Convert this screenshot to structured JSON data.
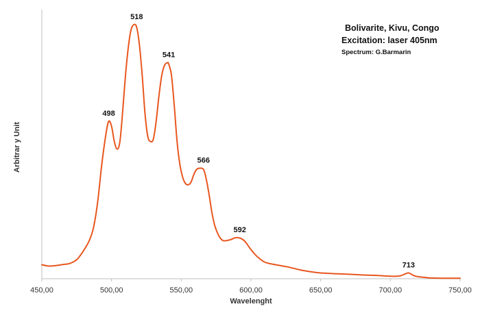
{
  "chart_data": {
    "type": "line",
    "title": "Bolivarite, Kivu, Congo",
    "subtitle": "Excitation: laser 405nm",
    "credit": "Spectrum: G.Barmarin",
    "xlabel": "Wavelenght",
    "ylabel": "Arbitrar y Unit",
    "xlim": [
      450,
      750
    ],
    "ylim": [
      0,
      100
    ],
    "x_ticks": [
      450,
      500,
      550,
      600,
      650,
      700,
      750
    ],
    "x_tick_labels": [
      "450,00",
      "500,00",
      "550,00",
      "600,00",
      "650,00",
      "700,00",
      "750,00"
    ],
    "grid": false,
    "legend": "none",
    "line_color": "#e8561e",
    "series": [
      {
        "x": [
          450,
          455,
          460,
          465,
          470,
          475,
          478,
          481,
          484,
          487,
          490,
          493,
          496,
          498,
          500,
          502,
          504,
          506,
          508,
          510,
          512,
          514,
          516,
          518,
          520,
          522,
          524,
          526,
          528,
          530,
          532,
          534,
          536,
          538,
          540,
          541,
          543,
          545,
          547,
          549,
          551,
          553,
          555,
          557,
          559,
          561,
          563,
          566,
          568,
          570,
          572,
          574,
          576,
          578,
          580,
          582,
          584,
          586,
          588,
          590,
          592,
          594,
          596,
          598,
          600,
          603,
          606,
          610,
          615,
          620,
          625,
          630,
          635,
          640,
          645,
          650,
          660,
          670,
          680,
          690,
          700,
          705,
          708,
          711,
          713,
          715,
          717,
          720,
          725,
          730,
          740,
          750
        ],
        "y": [
          5.5,
          5.0,
          5.2,
          5.6,
          6.0,
          7.5,
          9.5,
          12.0,
          15.0,
          20.0,
          30.0,
          45.0,
          57.0,
          62.0,
          60.0,
          54.0,
          51.0,
          54.0,
          66.0,
          80.0,
          91.0,
          98.0,
          100.0,
          99.0,
          92.0,
          80.0,
          65.0,
          56.0,
          54.0,
          55.0,
          62.0,
          72.0,
          80.0,
          84.0,
          85.0,
          84.5,
          80.0,
          68.0,
          54.0,
          45.0,
          40.0,
          37.5,
          37.0,
          38.0,
          41.0,
          43.0,
          43.5,
          43.0,
          39.0,
          33.0,
          26.0,
          21.0,
          18.0,
          16.0,
          15.0,
          15.0,
          15.2,
          15.5,
          16.0,
          16.2,
          16.0,
          15.5,
          14.5,
          13.0,
          11.5,
          9.5,
          8.0,
          6.5,
          5.8,
          5.3,
          4.8,
          4.2,
          3.5,
          3.0,
          2.6,
          2.3,
          2.0,
          1.8,
          1.5,
          1.3,
          1.0,
          1.0,
          1.3,
          2.0,
          2.3,
          1.8,
          1.2,
          0.8,
          0.5,
          0.3,
          0.2,
          0.2
        ]
      }
    ],
    "annotations": [
      {
        "text": "498",
        "x": 498,
        "y": 62.0
      },
      {
        "text": "518",
        "x": 518,
        "y": 100.0
      },
      {
        "text": "541",
        "x": 541,
        "y": 85.0
      },
      {
        "text": "566",
        "x": 566,
        "y": 43.5
      },
      {
        "text": "592",
        "x": 592,
        "y": 16.2
      },
      {
        "text": "713",
        "x": 713,
        "y": 2.3
      }
    ]
  }
}
